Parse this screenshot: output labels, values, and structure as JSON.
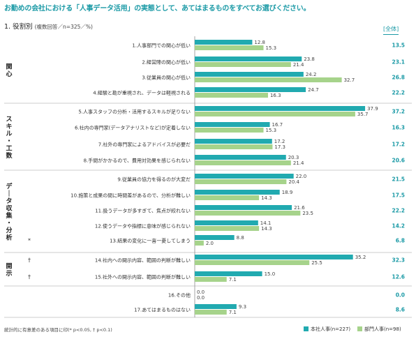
{
  "title": "お勤めの会社における「人事データ活用」の実態として、あてはまるものをすべてお選びください。",
  "section": {
    "label": "1. 役割別",
    "sub": "(複数回答／n=325／%)"
  },
  "total_header": "[全体]",
  "footnote": "統計的に有意差のある項目に印(* p<0.05, † p<0.1)",
  "colors": {
    "honsha": "#21aab0",
    "bumon": "#a6d38b",
    "accent": "#1b9aa6"
  },
  "chart_data": {
    "type": "bar",
    "orientation": "horizontal",
    "xlim": [
      0,
      40
    ],
    "series": [
      {
        "name": "本社人事(n=227)",
        "values": [
          12.8,
          23.8,
          24.2,
          24.7,
          37.9,
          16.7,
          17.2,
          20.3,
          22.0,
          18.9,
          21.6,
          14.1,
          8.8,
          35.2,
          15.0,
          0.0,
          9.3
        ]
      },
      {
        "name": "部門人事(n=98)",
        "values": [
          15.3,
          21.4,
          32.7,
          16.3,
          35.7,
          15.3,
          17.3,
          21.4,
          20.4,
          14.3,
          23.5,
          14.3,
          2.0,
          25.5,
          7.1,
          0.0,
          7.1
        ]
      }
    ],
    "categories": [
      "1.人事部門での関心が低い",
      "2.経営陣の関心が低い",
      "3.従業員の関心が低い",
      "4.経験と勘が重視され、データは軽視される",
      "5.人事スタッフの分析・活用するスキルが足りない",
      "6.社内の専門家(データアナリストなど)が定着しない",
      "7.社外の専門家によるアドバイスが必要だ",
      "8.手間がかかるので、費用対効果を感じられない",
      "9.従業員の協力を得るのが大変だ",
      "10.施策と成果の間に時間差があるので、分析が難しい",
      "11.扱うデータが多すぎて、焦点が絞れない",
      "12.使うデータや指標に意味が感じられない",
      "13.結果の変化に一喜一憂してしまう",
      "14.社内への開示内容、範囲の判断が難しい",
      "15.社外への開示内容、範囲の判断が難しい",
      "16.その他",
      "17.あてはまるものはない"
    ],
    "totals": [
      "13.5",
      "23.1",
      "26.8",
      "22.2",
      "37.2",
      "16.3",
      "17.2",
      "20.6",
      "21.5",
      "17.5",
      "22.2",
      "14.2",
      "6.8",
      "32.3",
      "12.6",
      "0.0",
      "8.6"
    ],
    "marks": [
      "",
      "",
      "",
      "",
      "",
      "",
      "",
      "",
      "",
      "",
      "",
      "",
      "*",
      "†",
      "†",
      "",
      ""
    ],
    "groups": [
      {
        "label": "関心",
        "rows": [
          0,
          3
        ]
      },
      {
        "label": "スキル・工数",
        "rows": [
          4,
          7
        ]
      },
      {
        "label": "データ収集・分析",
        "rows": [
          8,
          12
        ]
      },
      {
        "label": "開示",
        "rows": [
          13,
          14
        ]
      }
    ],
    "legend_position": "bottom-right"
  }
}
